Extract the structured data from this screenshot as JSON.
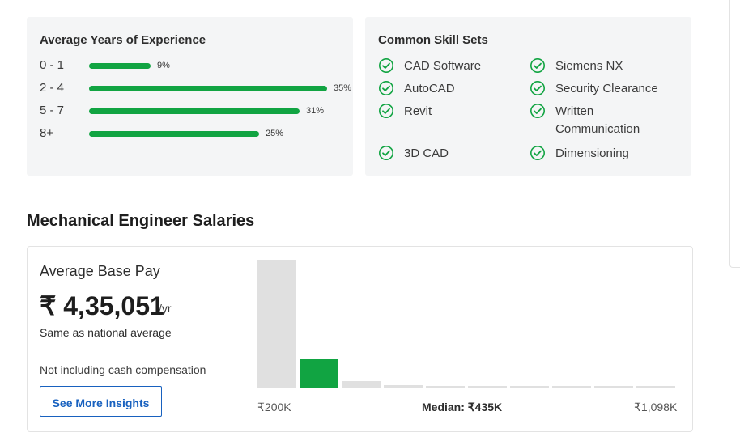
{
  "experience": {
    "title": "Average Years of Experience",
    "rows": [
      {
        "label": "0 - 1",
        "pct_text": "9%",
        "value": 9
      },
      {
        "label": "2 - 4",
        "pct_text": "35%",
        "value": 35
      },
      {
        "label": "5 - 7",
        "pct_text": "31%",
        "value": 31
      },
      {
        "label": "8+",
        "pct_text": "25%",
        "value": 25
      }
    ],
    "bar_color": "#11a442"
  },
  "skills": {
    "title": "Common Skill Sets",
    "items": [
      {
        "label": "CAD Software",
        "icon": "check-circle-icon"
      },
      {
        "label": "Siemens NX",
        "icon": "check-circle-icon"
      },
      {
        "label": "AutoCAD",
        "icon": "check-circle-icon"
      },
      {
        "label": "Security Clearance",
        "icon": "check-circle-icon"
      },
      {
        "label": "Revit",
        "icon": "check-circle-icon"
      },
      {
        "label": "Written Communication",
        "icon": "check-circle-icon"
      },
      {
        "label": "3D CAD",
        "icon": "check-circle-icon"
      },
      {
        "label": "Dimensioning",
        "icon": "check-circle-icon"
      }
    ],
    "icon_color": "#11a442"
  },
  "salaries": {
    "section_title": "Mechanical Engineer Salaries",
    "avg_base_pay_label": "Average Base Pay",
    "avg_base_pay_value": "₹ 4,35,051",
    "unit": "/yr",
    "national_avg_text": "Same as national average",
    "non_cash_text": "Not including cash compensation",
    "insights_button": "See More Insights"
  },
  "histogram": {
    "ticks": {
      "min": "₹200K",
      "median": "Median: ₹435K",
      "max": "₹1,098K"
    },
    "bars": [
      1.0,
      0.22,
      0.05,
      0.02,
      0.015,
      0.015,
      0.015,
      0.015,
      0.015,
      0.015
    ],
    "highlight_index": 1,
    "highlight_color": "#11a442",
    "default_color": "#e0e0e0"
  }
}
